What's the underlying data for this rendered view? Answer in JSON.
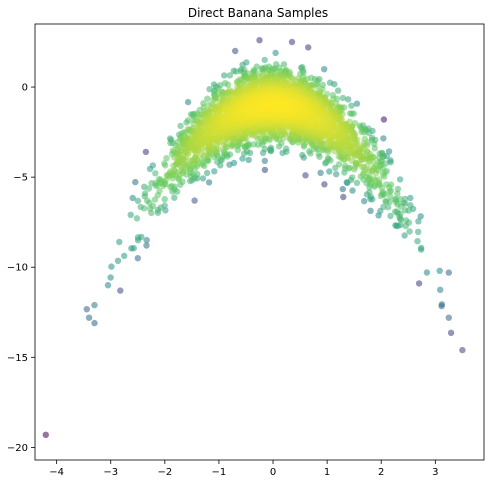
{
  "chart_data": {
    "type": "scatter",
    "title": "Direct Banana Samples",
    "xlabel": "",
    "ylabel": "",
    "xlim": [
      -4.4,
      3.9
    ],
    "ylim": [
      -20.7,
      3.5
    ],
    "x_ticks": [
      -4,
      -3,
      -2,
      -1,
      0,
      1,
      2,
      3
    ],
    "y_ticks": [
      0,
      -5,
      -10,
      -15,
      -20
    ],
    "x_tick_labels": [
      "−4",
      "−3",
      "−2",
      "−1",
      "0",
      "1",
      "2",
      "3"
    ],
    "y_tick_labels": [
      "0",
      "−5",
      "−10",
      "−15",
      "−20"
    ],
    "grid": false,
    "legend": "none",
    "colormap": "viridis",
    "marker_alpha": 0.55,
    "distribution": {
      "n": 3000,
      "x_mean": 0.0,
      "x_sd": 1.0,
      "y_offset": -1.0,
      "y_curvature": -1.0,
      "y_noise_sd": 0.95,
      "seed": 7
    },
    "outliers": [
      {
        "x": -4.2,
        "y": -19.3
      },
      {
        "x": 3.5,
        "y": -14.6
      },
      {
        "x": -3.3,
        "y": -13.1
      },
      {
        "x": -3.4,
        "y": -12.8
      },
      {
        "x": 3.25,
        "y": -12.8
      },
      {
        "x": -3.3,
        "y": -12.1
      },
      {
        "x": -3.05,
        "y": -11.0
      },
      {
        "x": 3.25,
        "y": -10.3
      },
      {
        "x": -2.5,
        "y": -9.5
      },
      {
        "x": 2.7,
        "y": -10.9
      },
      {
        "x": 2.05,
        "y": -1.8
      },
      {
        "x": -2.35,
        "y": -3.6
      },
      {
        "x": -0.25,
        "y": 2.6
      },
      {
        "x": 0.35,
        "y": 2.5
      },
      {
        "x": 0.65,
        "y": 2.2
      },
      {
        "x": -0.7,
        "y": 2.0
      },
      {
        "x": 0.6,
        "y": -4.9
      },
      {
        "x": 1.95,
        "y": -5.4
      },
      {
        "x": 1.3,
        "y": -6.1
      },
      {
        "x": 0.95,
        "y": -5.4
      },
      {
        "x": -1.45,
        "y": -6.3
      },
      {
        "x": -0.15,
        "y": -4.6
      }
    ]
  }
}
